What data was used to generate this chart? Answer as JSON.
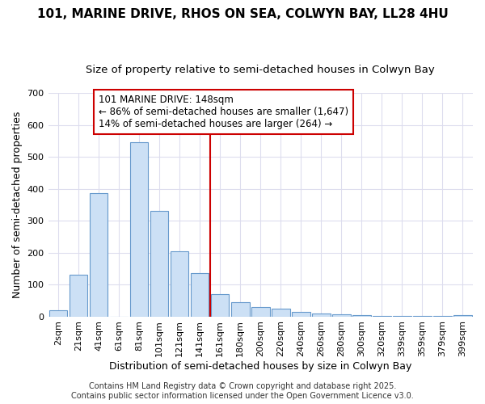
{
  "title": "101, MARINE DRIVE, RHOS ON SEA, COLWYN BAY, LL28 4HU",
  "subtitle": "Size of property relative to semi-detached houses in Colwyn Bay",
  "xlabel": "Distribution of semi-detached houses by size in Colwyn Bay",
  "ylabel": "Number of semi-detached properties",
  "categories": [
    "2sqm",
    "21sqm",
    "41sqm",
    "61sqm",
    "81sqm",
    "101sqm",
    "121sqm",
    "141sqm",
    "161sqm",
    "180sqm",
    "200sqm",
    "220sqm",
    "240sqm",
    "260sqm",
    "280sqm",
    "300sqm",
    "320sqm",
    "339sqm",
    "359sqm",
    "379sqm",
    "399sqm"
  ],
  "values": [
    20,
    130,
    385,
    0,
    545,
    330,
    205,
    135,
    70,
    45,
    30,
    25,
    15,
    10,
    7,
    5,
    1,
    1,
    1,
    1,
    4
  ],
  "bar_color": "#cce0f5",
  "bar_edge_color": "#6699cc",
  "vline_x_index": 7.5,
  "vline_color": "#cc0000",
  "annotation_text": "101 MARINE DRIVE: 148sqm\n← 86% of semi-detached houses are smaller (1,647)\n14% of semi-detached houses are larger (264) →",
  "annotation_box_color": "#ffffff",
  "annotation_box_edge": "#cc0000",
  "ylim": [
    0,
    700
  ],
  "yticks": [
    0,
    100,
    200,
    300,
    400,
    500,
    600,
    700
  ],
  "footer1": "Contains HM Land Registry data © Crown copyright and database right 2025.",
  "footer2": "Contains public sector information licensed under the Open Government Licence v3.0.",
  "bg_color": "#ffffff",
  "plot_bg_color": "#ffffff",
  "grid_color": "#ddddee",
  "title_fontsize": 11,
  "subtitle_fontsize": 9.5,
  "axis_fontsize": 9,
  "tick_fontsize": 8,
  "footer_fontsize": 7,
  "annot_fontsize": 8.5
}
